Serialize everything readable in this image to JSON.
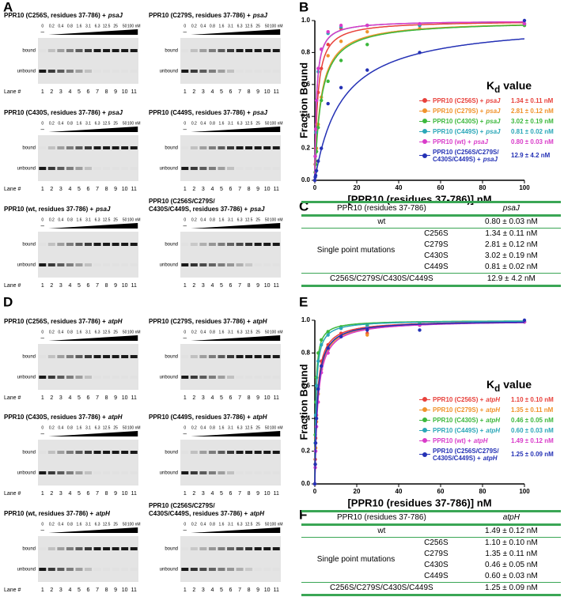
{
  "panel_labels": [
    "A",
    "B",
    "C",
    "D",
    "E",
    "F"
  ],
  "gel_panels": [
    {
      "rna": "psaJ",
      "concentrations": [
        "0",
        "0.2",
        "0.4",
        "0.8",
        "1.6",
        "3.1",
        "6.3",
        "12.5",
        "25",
        "50",
        "100 nM"
      ],
      "free_mark": "–",
      "lanes": [
        1,
        2,
        3,
        4,
        5,
        6,
        7,
        8,
        9,
        10,
        11
      ],
      "bound_label": "bound",
      "unbound_label": "unbound",
      "lane_label": "Lane #",
      "gels": [
        {
          "title": [
            "PPR10 (C256S, residues 37-786) +"
          ]
        },
        {
          "title": [
            "PPR10 (C279S, residues 37-786) +"
          ]
        },
        {
          "title": [
            "PPR10 (C430S, residues 37-786) +"
          ]
        },
        {
          "title": [
            "PPR10 (C449S, residues 37-786) +"
          ]
        },
        {
          "title": [
            "PPR10 (wt, residues 37-786) +"
          ]
        },
        {
          "title": [
            "PPR10 (C256S/C279S/",
            "C430S/C449S, residues 37-786) +"
          ]
        }
      ]
    },
    {
      "rna": "atpH",
      "concentrations": [
        "0",
        "0.2",
        "0.4",
        "0.8",
        "1.6",
        "3.1",
        "6.3",
        "12.5",
        "25",
        "50",
        "100 nM"
      ],
      "free_mark": "–",
      "lanes": [
        1,
        2,
        3,
        4,
        5,
        6,
        7,
        8,
        9,
        10,
        11
      ],
      "bound_label": "bound",
      "unbound_label": "unbound",
      "lane_label": "Lane #",
      "gels": [
        {
          "title": [
            "PPR10 (C256S, residues 37-786) +"
          ]
        },
        {
          "title": [
            "PPR10 (C279S, residues 37-786) +"
          ]
        },
        {
          "title": [
            "PPR10 (C430S, residues 37-786) +"
          ]
        },
        {
          "title": [
            "PPR10 (C449S, residues 37-786) +"
          ]
        },
        {
          "title": [
            "PPR10 (wt, residues 37-786) +"
          ]
        },
        {
          "title": [
            "PPR10 (C256S/C279S/",
            "C430S/C449S, residues 37-786) +"
          ]
        }
      ]
    }
  ],
  "chart_data": [
    {
      "type": "scatter",
      "rna": "psaJ",
      "xlabel": "[PPR10 (residues 37-786)] nM",
      "ylabel": "Fraction Bound",
      "legend_title": "K",
      "legend_title_sub": "d",
      "legend_title_rest": "value",
      "xlim": [
        0,
        100
      ],
      "ylim": [
        0,
        1.0
      ],
      "xticks": [
        0,
        20,
        40,
        60,
        80,
        100
      ],
      "yticks": [
        {
          "value": 0,
          "label": "0.0"
        },
        0.2,
        0.4,
        0.6,
        0.8,
        {
          "value": 1.0,
          "label": "1.0"
        }
      ],
      "x": [
        0,
        0.2,
        0.4,
        0.8,
        1.6,
        3.1,
        6.3,
        12.5,
        25,
        50,
        100
      ],
      "series": [
        {
          "name": "PPR10 (C256S) +",
          "color": "#e8413b",
          "kd": 1.34,
          "kd_label": "1.34 ± 0.11 nM",
          "values": [
            0,
            0.1,
            0.2,
            0.35,
            0.55,
            0.7,
            0.85,
            0.95,
            0.97,
            0.97,
            0.98
          ]
        },
        {
          "name": "PPR10 (C279S) +",
          "color": "#f0922b",
          "kd": 2.81,
          "kd_label": "2.81 ± 0.12 nM",
          "values": [
            0,
            0.05,
            0.12,
            0.2,
            0.35,
            0.52,
            0.78,
            0.87,
            0.93,
            0.95,
            0.97
          ]
        },
        {
          "name": "PPR10 (C430S) +",
          "color": "#3cb83c",
          "kd": 3.02,
          "kd_label": "3.02 ± 0.19 nM",
          "values": [
            0,
            0.05,
            0.1,
            0.18,
            0.33,
            0.5,
            0.62,
            0.75,
            0.85,
            0.97,
            0.97
          ]
        },
        {
          "name": "PPR10 (C449S) +",
          "color": "#2aa7b8",
          "kd": 0.81,
          "kd_label": "0.81 ± 0.02 nM",
          "values": [
            0,
            0.15,
            0.3,
            0.5,
            0.68,
            0.82,
            0.92,
            0.96,
            0.97,
            0.97,
            0.98
          ]
        },
        {
          "name": "PPR10 (wt) +",
          "color": "#d93bc9",
          "kd": 0.8,
          "kd_label": "0.80 ± 0.03 nM",
          "values": [
            0,
            0.15,
            0.32,
            0.5,
            0.7,
            0.82,
            0.93,
            0.97,
            0.97,
            0.98,
            0.98
          ]
        },
        {
          "name": "PPR10 (C256S/C279S/ C430S/C449S) +",
          "color": "#2431b5",
          "kd": 12.9,
          "kd_label": "12.9 ± 4.2 nM",
          "values": [
            0,
            0.02,
            0.03,
            0.06,
            0.12,
            0.2,
            0.48,
            0.58,
            0.69,
            0.8,
            1.0
          ]
        }
      ]
    },
    {
      "type": "scatter",
      "rna": "atpH",
      "xlabel": "[PPR10 (residues 37-786)] nM",
      "ylabel": "Fraction Bound",
      "legend_title": "K",
      "legend_title_sub": "d",
      "legend_title_rest": "value",
      "xlim": [
        0,
        100
      ],
      "ylim": [
        0,
        1.0
      ],
      "xticks": [
        0,
        20,
        40,
        60,
        80,
        100
      ],
      "yticks": [
        {
          "value": 0,
          "label": "0.0"
        },
        0.2,
        0.4,
        0.6,
        0.8,
        {
          "value": 1.0,
          "label": "1.0"
        }
      ],
      "x": [
        0,
        0.2,
        0.4,
        0.8,
        1.6,
        3.1,
        6.3,
        12.5,
        25,
        50,
        100
      ],
      "series": [
        {
          "name": "PPR10 (C256S) +",
          "color": "#e8413b",
          "kd": 1.1,
          "kd_label": "1.10 ± 0.10 nM",
          "values": [
            0,
            0.15,
            0.28,
            0.42,
            0.6,
            0.75,
            0.85,
            0.92,
            0.92,
            0.97,
            0.99
          ]
        },
        {
          "name": "PPR10 (C279S) +",
          "color": "#f0922b",
          "kd": 1.35,
          "kd_label": "1.35 ± 0.11 nM",
          "values": [
            0,
            0.12,
            0.22,
            0.38,
            0.55,
            0.7,
            0.82,
            0.9,
            0.91,
            0.98,
            0.99
          ]
        },
        {
          "name": "PPR10 (C430S) +",
          "color": "#3cb83c",
          "kd": 0.46,
          "kd_label": "0.46 ± 0.05 nM",
          "values": [
            0,
            0.3,
            0.5,
            0.65,
            0.8,
            0.88,
            0.93,
            0.96,
            0.97,
            0.98,
            0.99
          ]
        },
        {
          "name": "PPR10 (C449S) +",
          "color": "#2aa7b8",
          "kd": 0.6,
          "kd_label": "0.60 ± 0.03 nM",
          "values": [
            0,
            0.25,
            0.42,
            0.6,
            0.75,
            0.85,
            0.91,
            0.95,
            0.96,
            0.97,
            0.99
          ]
        },
        {
          "name": "PPR10 (wt) +",
          "color": "#d93bc9",
          "kd": 1.49,
          "kd_label": "1.49 ± 0.12 nM",
          "values": [
            0,
            0.1,
            0.2,
            0.35,
            0.5,
            0.68,
            0.8,
            0.9,
            0.95,
            0.97,
            0.99
          ]
        },
        {
          "name": "PPR10 (C256S/C279S/ C430S/C449S) +",
          "color": "#2431b5",
          "kd": 1.25,
          "kd_label": "1.25 ± 0.09 nM",
          "values": [
            0,
            0.12,
            0.25,
            0.4,
            0.58,
            0.72,
            0.83,
            0.9,
            0.94,
            0.94,
            1.0
          ]
        }
      ]
    }
  ],
  "tables": [
    {
      "header": [
        "PPR10 (residues 37-786)",
        "psaJ"
      ],
      "wt": [
        "wt",
        "0.80 ± 0.03 nM"
      ],
      "group_label": "Single point mutations",
      "mutations": [
        [
          "C256S",
          "1.34 ± 0.11 nM"
        ],
        [
          "C279S",
          "2.81 ± 0.12 nM"
        ],
        [
          "C430S",
          "3.02 ± 0.19 nM"
        ],
        [
          "C449S",
          "0.81 ± 0.02 nM"
        ]
      ],
      "combined": [
        "C256S/C279S/C430S/C449S",
        "12.9 ± 4.2 nM"
      ]
    },
    {
      "header": [
        "PPR10 (residues 37-786)",
        "atpH"
      ],
      "wt": [
        "wt",
        "1.49 ± 0.12 nM"
      ],
      "group_label": "Single point mutations",
      "mutations": [
        [
          "C256S",
          "1.10 ± 0.10 nM"
        ],
        [
          "C279S",
          "1.35 ± 0.11 nM"
        ],
        [
          "C430S",
          "0.46 ± 0.05 nM"
        ],
        [
          "C449S",
          "0.60 ± 0.03 nM"
        ]
      ],
      "combined": [
        "C256S/C279S/C430S/C449S",
        "1.25 ± 0.09 nM"
      ]
    }
  ]
}
